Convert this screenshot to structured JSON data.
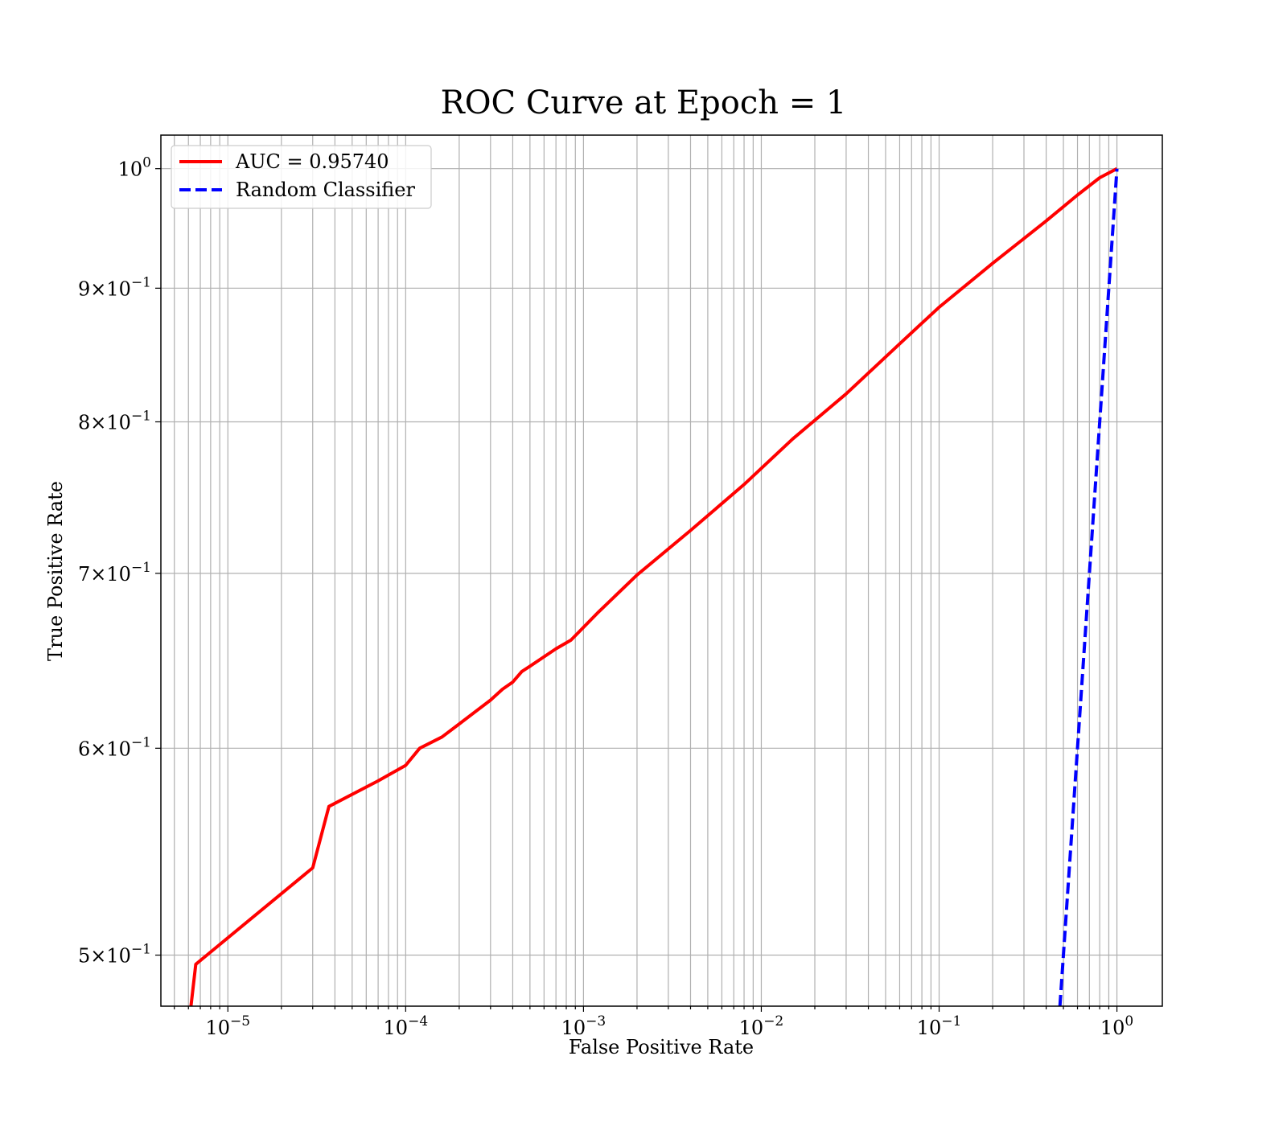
{
  "chart_data": {
    "type": "line",
    "title": "ROC Curve at Epoch = 1",
    "xlabel": "False Positive Rate",
    "ylabel": "True Positive Rate",
    "xscale": "log",
    "yscale": "log",
    "xlim": [
      4.2e-06,
      1.8
    ],
    "ylim": [
      0.478,
      1.03
    ],
    "grid": true,
    "legend_position": "upper-left",
    "x_ticks": [
      {
        "value": 1e-05,
        "base": "10",
        "exp": "−5"
      },
      {
        "value": 0.0001,
        "base": "10",
        "exp": "−4"
      },
      {
        "value": 0.001,
        "base": "10",
        "exp": "−3"
      },
      {
        "value": 0.01,
        "base": "10",
        "exp": "−2"
      },
      {
        "value": 0.1,
        "base": "10",
        "exp": "−1"
      },
      {
        "value": 1,
        "base": "10",
        "exp": "0"
      }
    ],
    "y_ticks": [
      {
        "value": 0.5,
        "mant": "5",
        "times": "×",
        "base": "10",
        "exp": "−1"
      },
      {
        "value": 0.6,
        "mant": "6",
        "times": "×",
        "base": "10",
        "exp": "−1"
      },
      {
        "value": 0.7,
        "mant": "7",
        "times": "×",
        "base": "10",
        "exp": "−1"
      },
      {
        "value": 0.8,
        "mant": "8",
        "times": "×",
        "base": "10",
        "exp": "−1"
      },
      {
        "value": 0.9,
        "mant": "9",
        "times": "×",
        "base": "10",
        "exp": "−1"
      },
      {
        "value": 1.0,
        "mant": "",
        "times": "",
        "base": "10",
        "exp": "0"
      }
    ],
    "series": [
      {
        "name": "AUC = 0.95740",
        "color": "#ff0000",
        "style": "solid",
        "x": [
          6.2e-06,
          6.6e-06,
          3e-05,
          3.7e-05,
          7e-05,
          0.0001,
          0.00012,
          0.00016,
          0.0002,
          0.0003,
          0.00035,
          0.0004,
          0.00045,
          0.0005,
          0.0007,
          0.00085,
          0.0012,
          0.002,
          0.004,
          0.008,
          0.015,
          0.03,
          0.06,
          0.1,
          0.2,
          0.4,
          0.6,
          0.8,
          1.0
        ],
        "y": [
          0.478,
          0.496,
          0.54,
          0.57,
          0.583,
          0.591,
          0.6,
          0.606,
          0.613,
          0.626,
          0.632,
          0.636,
          0.642,
          0.645,
          0.655,
          0.66,
          0.676,
          0.699,
          0.727,
          0.757,
          0.788,
          0.82,
          0.857,
          0.885,
          0.92,
          0.955,
          0.977,
          0.992,
          1.0
        ]
      },
      {
        "name": "Random Classifier",
        "color": "#0000ff",
        "style": "dashed",
        "x": [
          0.478,
          1.0
        ],
        "y": [
          0.478,
          1.0
        ]
      }
    ]
  }
}
